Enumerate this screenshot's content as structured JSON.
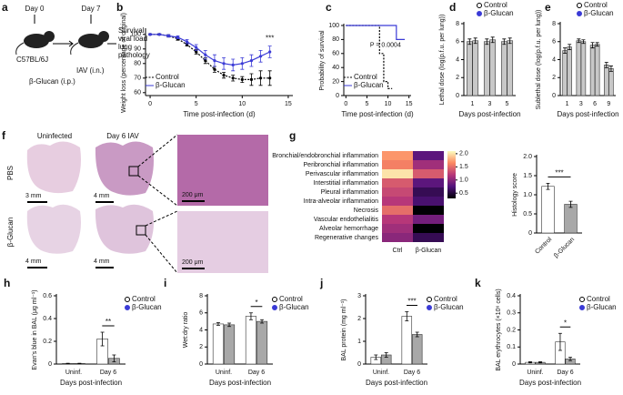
{
  "diagram": {
    "panel": "a",
    "day0": "Day 0",
    "day7": "Day 7",
    "strain": "C57BL/6J",
    "treatment": "β-Glucan (i.p.)",
    "infection": "IAV (i.n.)",
    "readouts": [
      "Survival",
      "viral load",
      "lung",
      "pathology"
    ]
  },
  "micrographs": {
    "panel": "f",
    "columns": [
      "Uninfected",
      "Day 6 IAV"
    ],
    "rows": [
      "PBS",
      "β-Glucan"
    ],
    "scale_bars": [
      "3 mm",
      "4 mm",
      "4 mm",
      "4 mm"
    ],
    "zoom_scale_bars": [
      "200 μm",
      "200 μm"
    ]
  },
  "chart_data": [
    {
      "type": "line",
      "panel": "b",
      "ylabel": "Weight loss (percentage of original)",
      "xlabel": "Time post-infection (d)",
      "x": [
        0,
        1,
        2,
        3,
        4,
        5,
        6,
        7,
        8,
        9,
        10,
        11,
        12,
        13
      ],
      "series": [
        {
          "name": "Control",
          "color": "#000000",
          "dash": true,
          "values": [
            100,
            100,
            99,
            97,
            93,
            88,
            82,
            76,
            72,
            70,
            69,
            69,
            70,
            70
          ],
          "errors": [
            0.5,
            0.5,
            0.8,
            1,
            1,
            1.5,
            2,
            2,
            2,
            2,
            2,
            4,
            5,
            5
          ]
        },
        {
          "name": "β-Glucan",
          "color": "#3b3bd6",
          "dash": false,
          "values": [
            100,
            100,
            99,
            98,
            95,
            91,
            86,
            82,
            80,
            79,
            80,
            82,
            85,
            88
          ],
          "errors": [
            0.5,
            0.5,
            0.8,
            1,
            1.5,
            2,
            3,
            4,
            4,
            4,
            4,
            4,
            4,
            4
          ]
        }
      ],
      "xlim": [
        -0.5,
        15.5
      ],
      "xticks": [
        0,
        5,
        10,
        15
      ],
      "ylim": [
        58,
        103
      ],
      "yticks": [
        60,
        70,
        80,
        90,
        100
      ],
      "annotation": "***",
      "legend": "lower left"
    },
    {
      "type": "step",
      "panel": "c",
      "ylabel": "Probability of survival",
      "xlabel": "Time post-infection (d)",
      "series": [
        {
          "name": "Control",
          "color": "#000000",
          "dash": true,
          "x": [
            0,
            8,
            8,
            9,
            9,
            10,
            10,
            11
          ],
          "values": [
            100,
            100,
            60,
            60,
            20,
            20,
            10,
            10
          ]
        },
        {
          "name": "β-Glucan",
          "color": "#3b3bd6",
          "dash": false,
          "x": [
            0,
            12,
            12,
            14
          ],
          "values": [
            100,
            100,
            80,
            80
          ]
        }
      ],
      "xlim": [
        -0.5,
        15.5
      ],
      "xticks": [
        0,
        5,
        10,
        15
      ],
      "ylim": [
        0,
        100
      ],
      "yticks": [
        0,
        20,
        40,
        60,
        80,
        100
      ],
      "annotation": "P = 0.0004",
      "legend": "lower left"
    },
    {
      "type": "bar",
      "panel": "d",
      "ylabel": "Lethal dose (log(p.f.u. per lung))",
      "xlabel": "Days post-infection",
      "categories": [
        "1",
        "3",
        "5"
      ],
      "series": [
        {
          "name": "Control",
          "color": "#c8c8c8",
          "marker_color": "#ffffff",
          "values": [
            6.0,
            6.0,
            6.0
          ],
          "errors": [
            0.3,
            0.3,
            0.3
          ]
        },
        {
          "name": "β-Glucan",
          "color": "#c8c8c8",
          "marker_color": "#3b3bd6",
          "values": [
            6.1,
            6.2,
            6.1
          ],
          "errors": [
            0.3,
            0.3,
            0.3
          ]
        }
      ],
      "ylim": [
        0,
        8
      ],
      "yticks": [
        0,
        2,
        4,
        6,
        8
      ],
      "legend": "upper right"
    },
    {
      "type": "bar",
      "panel": "e",
      "ylabel": "Sublethal dose (log(p.f.u. per lung))",
      "xlabel": "Days post-infection",
      "categories": [
        "1",
        "3",
        "6",
        "9"
      ],
      "series": [
        {
          "name": "Control",
          "color": "#c8c8c8",
          "marker_color": "#ffffff",
          "values": [
            5.0,
            6.1,
            5.6,
            3.4
          ],
          "errors": [
            0.3,
            0.2,
            0.3,
            0.3
          ]
        },
        {
          "name": "β-Glucan",
          "color": "#c8c8c8",
          "marker_color": "#3b3bd6",
          "values": [
            5.4,
            6.0,
            5.7,
            3.0
          ],
          "errors": [
            0.3,
            0.2,
            0.2,
            0.3
          ]
        }
      ],
      "ylim": [
        0,
        8
      ],
      "yticks": [
        0,
        2,
        4,
        6,
        8
      ],
      "legend": "upper right"
    },
    {
      "type": "heatmap",
      "panel": "g",
      "rows": [
        "Bronchial/endobronchial inflammation",
        "Peribronchial inflammation",
        "Perivascular inflammation",
        "Interstitial inflammation",
        "Pleural inflammation",
        "Intra-alveolar inflammation",
        "Necrosis",
        "Vascular endothelialitis",
        "Alveolar hemorrhage",
        "Regenerative changes"
      ],
      "columns": [
        "Ctrl",
        "β-Glucan"
      ],
      "values": [
        [
          1.7,
          0.8
        ],
        [
          1.6,
          1.1
        ],
        [
          2.0,
          1.4
        ],
        [
          1.4,
          0.8
        ],
        [
          1.3,
          0.6
        ],
        [
          1.2,
          0.7
        ],
        [
          1.5,
          0.2
        ],
        [
          1.2,
          0.9
        ],
        [
          1.1,
          0.2
        ],
        [
          1.0,
          0.6
        ]
      ],
      "colormap": [
        "#000004",
        "#51127c",
        "#b73779",
        "#fc8961",
        "#fcfdbf"
      ],
      "clim": [
        0.3,
        2.1
      ],
      "cticks": [
        0.5,
        {
          "value": 1,
          "label": "1.0"
        },
        1.5,
        {
          "value": 2,
          "label": "2.0"
        }
      ]
    },
    {
      "type": "bar",
      "ylabel": "Histology score",
      "categories": [
        "Control",
        "β-Glucan"
      ],
      "series": [
        {
          "name": "Histology score",
          "color_list": [
            "#ffffff",
            "#a8a8a8"
          ],
          "values": [
            1.22,
            0.75
          ],
          "errors": [
            0.08,
            0.08
          ]
        }
      ],
      "ylim": [
        0,
        2
      ],
      "yticks": [
        0,
        0.5,
        {
          "value": 1,
          "label": "1.0"
        },
        1.5,
        {
          "value": 2,
          "label": "2.0"
        }
      ],
      "annotation": "***"
    },
    {
      "type": "bar",
      "panel": "h",
      "ylabel": "Evan's blue in BAL (μg ml⁻¹)",
      "xlabel": "Days post-infection",
      "categories": [
        "Uninf.",
        "Day 6"
      ],
      "series": [
        {
          "name": "Control",
          "color": "#ffffff",
          "marker_color": "#ffffff",
          "values": [
            0.005,
            0.22
          ],
          "errors": [
            0.002,
            0.06
          ]
        },
        {
          "name": "β-Glucan",
          "color": "#a8a8a8",
          "marker_color": "#3b3bd6",
          "values": [
            0.005,
            0.05
          ],
          "errors": [
            0.002,
            0.03
          ]
        }
      ],
      "ylim": [
        0,
        0.6
      ],
      "yticks": [
        0,
        0.2,
        0.4,
        0.6
      ],
      "annotation": "**",
      "legend": "right"
    },
    {
      "type": "bar",
      "panel": "i",
      "ylabel": "Wet:dry ratio",
      "xlabel": "Days post-infection",
      "categories": [
        "Uninf.",
        "Day 6"
      ],
      "series": [
        {
          "name": "Control",
          "color": "#ffffff",
          "marker_color": "#ffffff",
          "values": [
            4.7,
            5.6
          ],
          "errors": [
            0.15,
            0.4
          ]
        },
        {
          "name": "β-Glucan",
          "color": "#a8a8a8",
          "marker_color": "#3b3bd6",
          "values": [
            4.6,
            5.0
          ],
          "errors": [
            0.2,
            0.2
          ]
        }
      ],
      "ylim": [
        0,
        8
      ],
      "yticks": [
        0,
        2,
        4,
        6,
        8
      ],
      "annotation": "*",
      "legend": "right"
    },
    {
      "type": "bar",
      "panel": "j",
      "ylabel": "BAL protein (mg ml⁻¹)",
      "xlabel": "Days post-infection",
      "categories": [
        "Uninf.",
        "Day 6"
      ],
      "series": [
        {
          "name": "Control",
          "color": "#ffffff",
          "marker_color": "#ffffff",
          "values": [
            0.3,
            2.1
          ],
          "errors": [
            0.1,
            0.2
          ]
        },
        {
          "name": "β-Glucan",
          "color": "#a8a8a8",
          "marker_color": "#3b3bd6",
          "values": [
            0.4,
            1.3
          ],
          "errors": [
            0.1,
            0.1
          ]
        }
      ],
      "ylim": [
        0,
        3
      ],
      "yticks": [
        0,
        1,
        2,
        3
      ],
      "annotation": "***",
      "legend": "right"
    },
    {
      "type": "bar",
      "panel": "k",
      "ylabel": "BAL erythrocytes (×10⁶ cells)",
      "xlabel": "Days post-infection",
      "categories": [
        "Uninf.",
        "Day 6"
      ],
      "series": [
        {
          "name": "Control",
          "color": "#ffffff",
          "marker_color": "#ffffff",
          "values": [
            0.01,
            0.13
          ],
          "errors": [
            0.003,
            0.05
          ]
        },
        {
          "name": "β-Glucan",
          "color": "#a8a8a8",
          "marker_color": "#3b3bd6",
          "values": [
            0.01,
            0.03
          ],
          "errors": [
            0.003,
            0.01
          ]
        }
      ],
      "ylim": [
        0,
        0.4
      ],
      "yticks": [
        0,
        0.1,
        0.2,
        0.3,
        0.4
      ],
      "annotation": "*",
      "legend": "right"
    }
  ]
}
